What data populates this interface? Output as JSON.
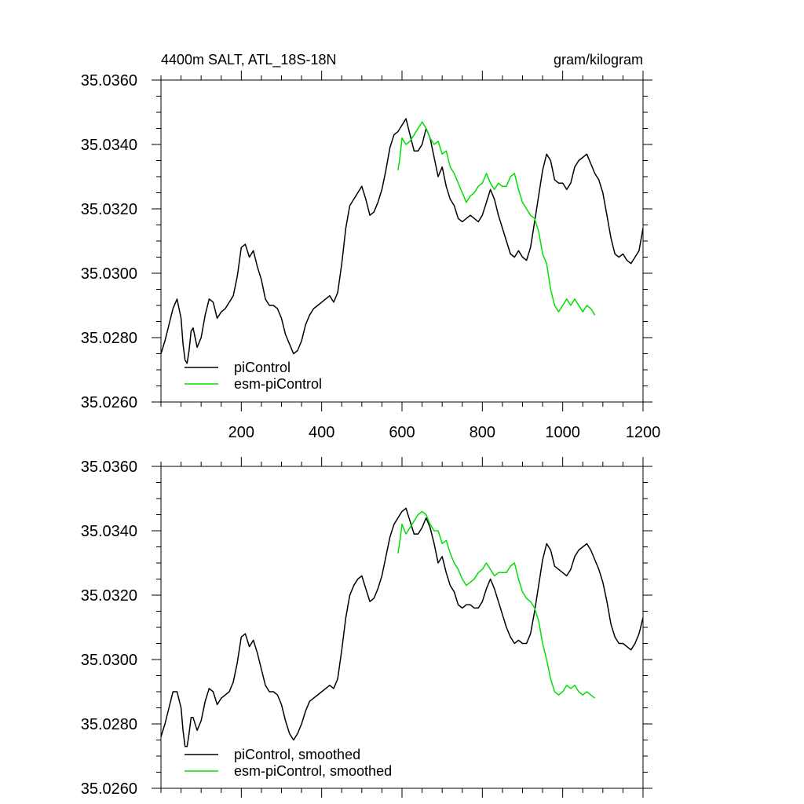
{
  "chart_data": [
    {
      "type": "line",
      "title": "4400m SALT, ATL_18S-18N",
      "units": "gram/kilogram",
      "xlim": [
        0,
        1200
      ],
      "ylim": [
        35.026,
        35.036
      ],
      "xticks": [
        200,
        400,
        600,
        800,
        1000,
        1200
      ],
      "xtick_labels": [
        "200",
        "400",
        "600",
        "800",
        "1000",
        "1200"
      ],
      "yticks": [
        35.026,
        35.028,
        35.03,
        35.032,
        35.034,
        35.036
      ],
      "ytick_labels": [
        "35.0260",
        "35.0280",
        "35.0300",
        "35.0320",
        "35.0340",
        "35.0360"
      ],
      "legend_position": "bottom-left",
      "series": [
        {
          "name": "piControl",
          "color": "#000000",
          "x": [
            0,
            10,
            20,
            30,
            40,
            50,
            55,
            60,
            65,
            70,
            75,
            80,
            90,
            100,
            110,
            120,
            130,
            140,
            150,
            160,
            170,
            180,
            190,
            200,
            210,
            220,
            230,
            240,
            250,
            260,
            270,
            280,
            290,
            300,
            310,
            320,
            330,
            340,
            350,
            360,
            370,
            380,
            390,
            400,
            410,
            420,
            430,
            440,
            450,
            460,
            470,
            480,
            490,
            500,
            510,
            520,
            530,
            540,
            550,
            560,
            570,
            580,
            590,
            600,
            610,
            620,
            630,
            640,
            650,
            660,
            670,
            680,
            690,
            700,
            710,
            720,
            730,
            740,
            750,
            760,
            770,
            780,
            790,
            800,
            810,
            820,
            830,
            840,
            850,
            860,
            870,
            880,
            890,
            900,
            910,
            920,
            930,
            940,
            950,
            960,
            970,
            980,
            990,
            1000,
            1010,
            1020,
            1030,
            1040,
            1050,
            1060,
            1070,
            1080,
            1090,
            1100,
            1110,
            1120,
            1130,
            1140,
            1150,
            1160,
            1170,
            1180,
            1190,
            1200
          ],
          "y": [
            35.0275,
            35.0279,
            35.0284,
            35.0289,
            35.0292,
            35.0286,
            35.0278,
            35.0273,
            35.0272,
            35.0276,
            35.0282,
            35.0283,
            35.0277,
            35.028,
            35.0287,
            35.0292,
            35.0291,
            35.0286,
            35.0288,
            35.0289,
            35.0291,
            35.0293,
            35.0299,
            35.0308,
            35.0309,
            35.0305,
            35.0307,
            35.0302,
            35.0298,
            35.0292,
            35.029,
            35.029,
            35.0289,
            35.0286,
            35.0281,
            35.0278,
            35.0275,
            35.0276,
            35.0279,
            35.0284,
            35.0287,
            35.0289,
            35.029,
            35.0291,
            35.0292,
            35.0293,
            35.0291,
            35.0294,
            35.0303,
            35.0314,
            35.0321,
            35.0323,
            35.0325,
            35.0327,
            35.0323,
            35.0318,
            35.0319,
            35.0322,
            35.0326,
            35.0332,
            35.0339,
            35.0343,
            35.0344,
            35.0346,
            35.0348,
            35.0343,
            35.0338,
            35.0338,
            35.034,
            35.0345,
            35.0342,
            35.0336,
            35.033,
            35.0333,
            35.0327,
            35.0323,
            35.0321,
            35.0317,
            35.0316,
            35.0317,
            35.0318,
            35.0317,
            35.0316,
            35.0318,
            35.0322,
            35.0326,
            35.0323,
            35.0318,
            35.0314,
            35.031,
            35.0306,
            35.0305,
            35.0307,
            35.0305,
            35.0304,
            35.0308,
            35.0316,
            35.0324,
            35.0332,
            35.0337,
            35.0335,
            35.0329,
            35.0328,
            35.0328,
            35.0326,
            35.0328,
            35.0333,
            35.0335,
            35.0336,
            35.0337,
            35.0334,
            35.0331,
            35.0329,
            35.0325,
            35.0318,
            35.0311,
            35.0306,
            35.0305,
            35.0306,
            35.0304,
            35.0303,
            35.0305,
            35.0307,
            35.0314
          ]
        },
        {
          "name": "esm-piControl",
          "color": "#00e000",
          "x": [
            590,
            595,
            600,
            610,
            620,
            630,
            640,
            650,
            660,
            670,
            680,
            690,
            700,
            710,
            720,
            730,
            740,
            750,
            760,
            770,
            780,
            790,
            800,
            810,
            820,
            830,
            840,
            850,
            860,
            870,
            880,
            890,
            900,
            910,
            920,
            930,
            940,
            950,
            960,
            970,
            980,
            990,
            1000,
            1010,
            1020,
            1030,
            1040,
            1050,
            1060,
            1070,
            1080
          ],
          "y": [
            35.0332,
            35.0336,
            35.0342,
            35.034,
            35.0341,
            35.0343,
            35.0345,
            35.0347,
            35.0345,
            35.0342,
            35.034,
            35.0341,
            35.0337,
            35.0338,
            35.0333,
            35.0331,
            35.0328,
            35.0325,
            35.0322,
            35.0324,
            35.0325,
            35.0327,
            35.0328,
            35.0331,
            35.0328,
            35.0326,
            35.0328,
            35.0327,
            35.0327,
            35.033,
            35.0331,
            35.0326,
            35.0322,
            35.032,
            35.0318,
            35.0317,
            35.0313,
            35.0306,
            35.0303,
            35.0295,
            35.029,
            35.0288,
            35.029,
            35.0292,
            35.029,
            35.0292,
            35.029,
            35.0288,
            35.029,
            35.0289,
            35.0287
          ]
        }
      ]
    },
    {
      "type": "line",
      "xlim": [
        0,
        1200
      ],
      "ylim": [
        35.026,
        35.036
      ],
      "yticks": [
        35.026,
        35.028,
        35.03,
        35.032,
        35.034,
        35.036
      ],
      "ytick_labels": [
        "35.0260",
        "35.0280",
        "35.0300",
        "35.0320",
        "35.0340",
        "35.0360"
      ],
      "xticks": [
        200,
        400,
        600,
        800,
        1000,
        1200
      ],
      "legend_position": "bottom-left",
      "series": [
        {
          "name": "piControl, smoothed",
          "color": "#000000",
          "x": [
            0,
            10,
            20,
            30,
            40,
            50,
            55,
            60,
            65,
            70,
            75,
            80,
            90,
            100,
            110,
            120,
            130,
            140,
            150,
            160,
            170,
            180,
            190,
            200,
            210,
            220,
            230,
            240,
            250,
            260,
            270,
            280,
            290,
            300,
            310,
            320,
            330,
            340,
            350,
            360,
            370,
            380,
            390,
            400,
            410,
            420,
            430,
            440,
            450,
            460,
            470,
            480,
            490,
            500,
            510,
            520,
            530,
            540,
            550,
            560,
            570,
            580,
            590,
            600,
            610,
            620,
            630,
            640,
            650,
            660,
            670,
            680,
            690,
            700,
            710,
            720,
            730,
            740,
            750,
            760,
            770,
            780,
            790,
            800,
            810,
            820,
            830,
            840,
            850,
            860,
            870,
            880,
            890,
            900,
            910,
            920,
            930,
            940,
            950,
            960,
            970,
            980,
            990,
            1000,
            1010,
            1020,
            1030,
            1040,
            1050,
            1060,
            1070,
            1080,
            1090,
            1100,
            1110,
            1120,
            1130,
            1140,
            1150,
            1160,
            1170,
            1180,
            1190,
            1200
          ],
          "y": [
            35.0276,
            35.028,
            35.0285,
            35.029,
            35.029,
            35.0285,
            35.0278,
            35.0273,
            35.0273,
            35.0277,
            35.0282,
            35.0282,
            35.0278,
            35.0281,
            35.0287,
            35.0291,
            35.029,
            35.0286,
            35.0288,
            35.0289,
            35.029,
            35.0293,
            35.0299,
            35.0307,
            35.0308,
            35.0304,
            35.0306,
            35.0302,
            35.0297,
            35.0292,
            35.029,
            35.029,
            35.0289,
            35.0286,
            35.0281,
            35.0277,
            35.0275,
            35.0277,
            35.028,
            35.0284,
            35.0287,
            35.0288,
            35.0289,
            35.029,
            35.0291,
            35.0292,
            35.0291,
            35.0294,
            35.0303,
            35.0313,
            35.032,
            35.0323,
            35.0325,
            35.0326,
            35.0322,
            35.0318,
            35.0319,
            35.0322,
            35.0326,
            35.0332,
            35.0338,
            35.0342,
            35.0344,
            35.0346,
            35.0347,
            35.0343,
            35.0339,
            35.0339,
            35.0341,
            35.0344,
            35.0341,
            35.0336,
            35.033,
            35.0332,
            35.0327,
            35.0323,
            35.0321,
            35.0317,
            35.0316,
            35.0317,
            35.0317,
            35.0316,
            35.0316,
            35.0318,
            35.0322,
            35.0325,
            35.0322,
            35.0318,
            35.0314,
            35.031,
            35.0307,
            35.0305,
            35.0306,
            35.0305,
            35.0305,
            35.0308,
            35.0315,
            35.0323,
            35.0331,
            35.0336,
            35.0334,
            35.0329,
            35.0328,
            35.0327,
            35.0326,
            35.0328,
            35.0332,
            35.0334,
            35.0335,
            35.0336,
            35.0334,
            35.0331,
            35.0328,
            35.0324,
            35.0318,
            35.0311,
            35.0307,
            35.0305,
            35.0305,
            35.0304,
            35.0303,
            35.0305,
            35.0308,
            35.0313
          ]
        },
        {
          "name": "esm-piControl, smoothed",
          "color": "#00e000",
          "x": [
            590,
            595,
            600,
            610,
            620,
            630,
            640,
            650,
            660,
            670,
            680,
            690,
            700,
            710,
            720,
            730,
            740,
            750,
            760,
            770,
            780,
            790,
            800,
            810,
            820,
            830,
            840,
            850,
            860,
            870,
            880,
            890,
            900,
            910,
            920,
            930,
            940,
            950,
            960,
            970,
            980,
            990,
            1000,
            1010,
            1020,
            1030,
            1040,
            1050,
            1060,
            1070,
            1080
          ],
          "y": [
            35.0333,
            35.0337,
            35.0342,
            35.0339,
            35.0341,
            35.0343,
            35.0345,
            35.0346,
            35.0345,
            35.0342,
            35.034,
            35.034,
            35.0336,
            35.0337,
            35.0333,
            35.033,
            35.0328,
            35.0325,
            35.0323,
            35.0324,
            35.0325,
            35.0327,
            35.0328,
            35.033,
            35.0328,
            35.0326,
            35.0327,
            35.0327,
            35.0327,
            35.0329,
            35.033,
            35.0325,
            35.0321,
            35.0319,
            35.0318,
            35.0316,
            35.0312,
            35.0305,
            35.03,
            35.0294,
            35.029,
            35.0289,
            35.029,
            35.0292,
            35.0291,
            35.0292,
            35.029,
            35.0289,
            35.029,
            35.0289,
            35.0288
          ]
        }
      ]
    }
  ]
}
